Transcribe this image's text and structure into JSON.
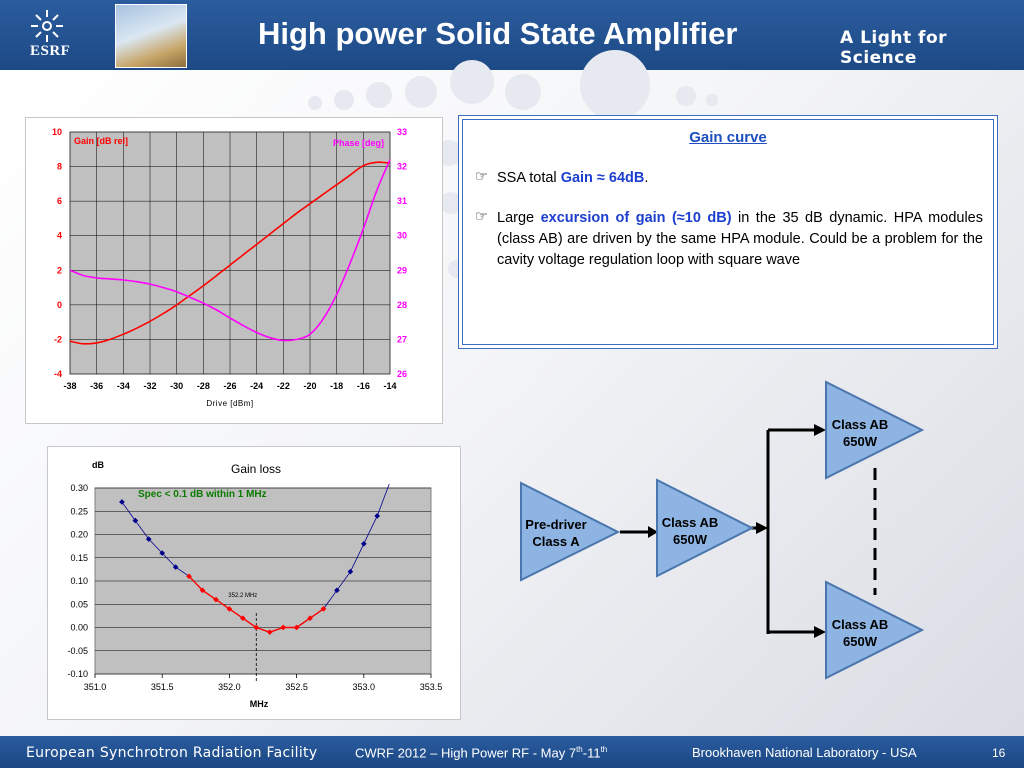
{
  "header": {
    "logo_text": "ESRF",
    "title": "High power Solid State Amplifier",
    "tagline": "A Light for Science"
  },
  "gain_curve_box": {
    "heading": "Gain curve",
    "bullet1_prefix": "SSA total ",
    "bullet1_highlight": "Gain ≈ 64dB",
    "bullet1_suffix": ".",
    "bullet2_prefix": "Large ",
    "bullet2_highlight": "excursion of gain (≈10 dB)",
    "bullet2_suffix": " in the 35 dB dynamic. HPA modules (class AB) are driven by the same HPA module. Could be a problem for the cavity voltage regulation loop with square wave",
    "bullet_icon": "pointing-hand-icon"
  },
  "diagram": {
    "predriver_line1": "Pre-driver",
    "predriver_line2": "Class A",
    "driver_line1": "Class AB",
    "driver_line2": "650W",
    "top_line1": "Class AB",
    "top_line2": "650W",
    "bottom_line1": "Class AB",
    "bottom_line2": "650W",
    "fill_color": "#8db4e2",
    "stroke_color": "#4a76ad"
  },
  "footer": {
    "left": "European Synchrotron Radiation Facility",
    "center_prefix": "CWRF 2012 – High Power RF  - May 7",
    "center_sup1": "th",
    "center_mid": "-11",
    "center_sup2": "th",
    "right": "Brookhaven National Laboratory - USA",
    "page": "16"
  },
  "chart_data": [
    {
      "type": "line",
      "title": "",
      "xlabel": "Drive [dBm]",
      "xlim": [
        -38,
        -14
      ],
      "x_ticks": [
        -38,
        -36,
        -34,
        -32,
        -30,
        -28,
        -26,
        -24,
        -22,
        -20,
        -18,
        -16,
        -14
      ],
      "y_left_label": "Gain [dB rel]",
      "y_left_lim": [
        -4,
        10
      ],
      "y_left_ticks": [
        -4,
        -2,
        0,
        2,
        4,
        6,
        8,
        10
      ],
      "y_right_label": "Phase [deg]",
      "y_right_lim": [
        26,
        33
      ],
      "y_right_ticks": [
        26,
        27,
        28,
        29,
        30,
        31,
        32,
        33
      ],
      "grid": true,
      "background": "#c0c0c0",
      "series": [
        {
          "name": "Gain [dB rel]",
          "axis": "left",
          "color": "#ff0000",
          "x": [
            -38,
            -37,
            -36,
            -35,
            -34,
            -33,
            -32,
            -31,
            -30,
            -29,
            -28,
            -27,
            -26,
            -25,
            -24,
            -23,
            -22,
            -21,
            -20,
            -19,
            -18,
            -17,
            -16,
            -15,
            -14
          ],
          "y": [
            -2.1,
            -2.25,
            -2.2,
            -2.0,
            -1.7,
            -1.35,
            -0.95,
            -0.5,
            0.0,
            0.55,
            1.1,
            1.7,
            2.3,
            2.9,
            3.5,
            4.1,
            4.7,
            5.3,
            5.85,
            6.4,
            6.95,
            7.5,
            8.05,
            8.25,
            8.2
          ]
        },
        {
          "name": "Phase [deg]",
          "axis": "right",
          "color": "#ff00ff",
          "x": [
            -38,
            -37,
            -36,
            -35,
            -34,
            -33,
            -32,
            -31,
            -30,
            -29,
            -28,
            -27,
            -26,
            -25,
            -24,
            -23,
            -22,
            -21,
            -20,
            -19,
            -18,
            -17,
            -16,
            -15,
            -14
          ],
          "y": [
            29.0,
            28.85,
            28.78,
            28.75,
            28.72,
            28.67,
            28.6,
            28.5,
            28.38,
            28.22,
            28.05,
            27.85,
            27.62,
            27.4,
            27.2,
            27.05,
            26.97,
            27.0,
            27.15,
            27.6,
            28.3,
            29.2,
            30.2,
            31.3,
            32.2
          ]
        }
      ]
    },
    {
      "type": "line",
      "title": "Gain loss",
      "ylabel": "dB",
      "xlabel": "MHz",
      "xlim": [
        351.0,
        353.5
      ],
      "x_ticks": [
        351.0,
        351.5,
        352.0,
        352.5,
        353.0,
        353.5
      ],
      "ylim": [
        -0.1,
        0.3
      ],
      "y_ticks": [
        -0.1,
        -0.05,
        0.0,
        0.05,
        0.1,
        0.15,
        0.2,
        0.25,
        0.3
      ],
      "grid": true,
      "background": "#c0c0c0",
      "annotations": [
        {
          "text": "Spec < 0.1 dB within 1 MHz",
          "color": "#0a7a00"
        },
        {
          "text": "352.2 MHz",
          "x": 352.2
        }
      ],
      "series": [
        {
          "name": "measured",
          "color": "#00008b",
          "x": [
            351.2,
            351.3,
            351.4,
            351.5,
            351.6,
            351.7,
            351.8,
            351.9,
            352.0,
            352.1,
            352.2,
            352.3,
            352.4,
            352.5,
            352.6,
            352.7,
            352.8,
            352.9,
            353.0,
            353.1
          ],
          "y": [
            0.27,
            0.23,
            0.19,
            0.16,
            0.13,
            0.11,
            0.08,
            0.06,
            0.04,
            0.02,
            0.0,
            -0.01,
            0.0,
            0.0,
            0.02,
            0.04,
            0.08,
            0.12,
            0.18,
            0.24
          ]
        }
      ],
      "spec_range": [
        351.7,
        352.7
      ]
    }
  ]
}
